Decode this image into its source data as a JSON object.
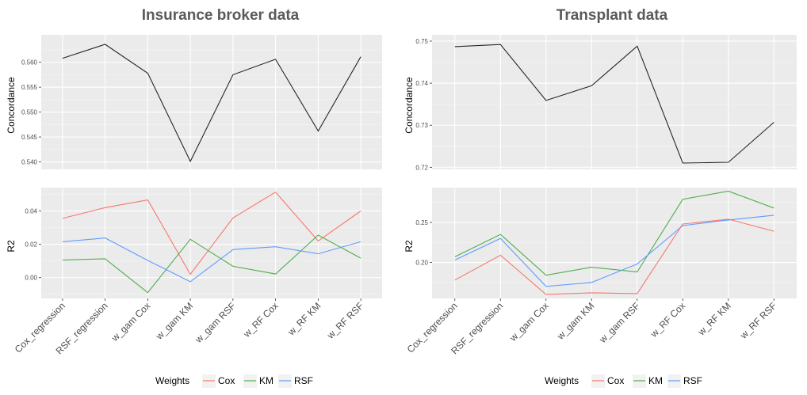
{
  "colors": {
    "panel_bg": "#ebebeb",
    "grid_major": "#ffffff",
    "grid_minor": "#f5f5f5",
    "title_text": "#5a5a5a",
    "axis_text": "#4d4d4d",
    "Cox": "#f8766d",
    "KM": "#4daf4a",
    "RSF": "#619cff",
    "concordance_line": "#262626"
  },
  "chart_data": [
    {
      "title": "Insurance broker data",
      "categories": [
        "Cox_regression",
        "RSF_regression",
        "w_gam Cox",
        "w_gam KM",
        "w_gam RSF",
        "w_RF Cox",
        "w_RF KM",
        "w_RF RSF"
      ],
      "legend": {
        "title": "Weights",
        "items": [
          "Cox",
          "KM",
          "RSF"
        ],
        "position": "bottom"
      },
      "panels": [
        {
          "type": "line",
          "ylabel": "Concordance",
          "ylim": [
            0.5385,
            0.5655
          ],
          "yticks": [
            0.54,
            0.545,
            0.55,
            0.555,
            0.56
          ],
          "yticklabels": [
            "0.540",
            "0.545",
            "0.550",
            "0.555",
            "0.560"
          ],
          "series": [
            {
              "key": "concordance",
              "values": [
                0.5608,
                0.5636,
                0.5578,
                0.5401,
                0.5575,
                0.5606,
                0.5462,
                0.5611
              ]
            }
          ]
        },
        {
          "type": "line",
          "ylabel": "R2",
          "ylim": [
            -0.0125,
            0.054
          ],
          "yticks": [
            0.0,
            0.02,
            0.04
          ],
          "yticklabels": [
            "0.00",
            "0.02",
            "0.04"
          ],
          "series": [
            {
              "key": "Cox",
              "values": [
                0.0355,
                0.042,
                0.0466,
                0.002,
                0.0358,
                0.0513,
                0.022,
                0.04
              ]
            },
            {
              "key": "KM",
              "values": [
                0.0105,
                0.0113,
                -0.009,
                0.023,
                0.0068,
                0.0022,
                0.0255,
                0.0117
              ]
            },
            {
              "key": "RSF",
              "values": [
                0.0215,
                0.0238,
                0.0103,
                -0.0025,
                0.0168,
                0.0185,
                0.0143,
                0.0215
              ]
            }
          ]
        }
      ]
    },
    {
      "title": "Transplant data",
      "categories": [
        "Cox_regression",
        "RSF_regression",
        "w_gam Cox",
        "w_gam KM",
        "w_gam RSF",
        "w_RF Cox",
        "w_RF KM",
        "w_RF RSF"
      ],
      "legend": {
        "title": "Weights",
        "items": [
          "Cox",
          "KM",
          "RSF"
        ],
        "position": "bottom"
      },
      "panels": [
        {
          "type": "line",
          "ylabel": "Concordance",
          "ylim": [
            0.7195,
            0.7515
          ],
          "yticks": [
            0.72,
            0.73,
            0.74,
            0.75
          ],
          "yticklabels": [
            "0.72",
            "0.73",
            "0.74",
            "0.75"
          ],
          "series": [
            {
              "key": "concordance",
              "values": [
                0.7487,
                0.7492,
                0.7359,
                0.7394,
                0.7488,
                0.721,
                0.7212,
                0.7307
              ]
            }
          ]
        },
        {
          "type": "line",
          "ylabel": "R2",
          "ylim": [
            0.155,
            0.2935
          ],
          "yticks": [
            0.2,
            0.25
          ],
          "yticklabels": [
            "0.20",
            "0.25"
          ],
          "series": [
            {
              "key": "Cox",
              "values": [
                0.178,
                0.209,
                0.16,
                0.162,
                0.161,
                0.248,
                0.254,
                0.239
              ]
            },
            {
              "key": "KM",
              "values": [
                0.207,
                0.235,
                0.184,
                0.194,
                0.188,
                0.279,
                0.289,
                0.268
              ]
            },
            {
              "key": "RSF",
              "values": [
                0.203,
                0.23,
                0.17,
                0.175,
                0.198,
                0.246,
                0.253,
                0.259
              ]
            }
          ]
        }
      ]
    }
  ]
}
